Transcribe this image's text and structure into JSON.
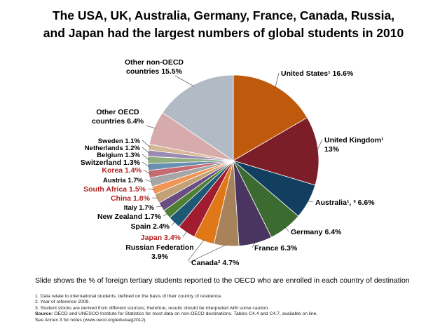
{
  "title_line1": "The USA, UK, Australia, Germany, France, Canada, Russia,",
  "title_line2": "and Japan had the largest numbers of global students in 2010",
  "caption": "Slide shows the % of foreign tertiary students reported to the OECD who are enrolled in each country of destination",
  "notes": {
    "n1": "1. Data relate to international students, defined on the basis of their country of residence.",
    "n2": "2. Year of reference 2009.",
    "n3": "3. Student stocks are derived from different sources; therefore, results should be interpreted with some caution.",
    "source_label": "Source:",
    "source_text": " OECD and UNESCO Institute for Statistics for most data on non-OECD destinations. Tables  C4.4 and C4.7, available on line.",
    "annex": "See Annex 3 for notes (www.oecd.org/edu/eag2012)."
  },
  "chart_data": {
    "type": "pie",
    "title": "The USA, UK, Australia, Germany, France, Canada, Russia, and Japan had the largest numbers of global students in 2010",
    "slices": [
      {
        "label": "United States¹  16.6%",
        "value": 16.6,
        "color": "#bf5a0c"
      },
      {
        "label": "United Kingdom¹ 13%",
        "value": 13.0,
        "color": "#7b1e28"
      },
      {
        "label": "Australia¹, ³  6.6%",
        "value": 6.6,
        "color": "#123f60"
      },
      {
        "label": "Germany  6.4%",
        "value": 6.4,
        "color": "#3b6b31"
      },
      {
        "label": "France  6.3%",
        "value": 6.3,
        "color": "#4a3560"
      },
      {
        "label": "Canada²  4.7%",
        "value": 4.7,
        "color": "#a8825a"
      },
      {
        "label": "Russian Federation 3.9%",
        "value": 3.9,
        "color": "#e07818"
      },
      {
        "label": "Japan  3.4%",
        "value": 3.4,
        "color": "#a01c2e"
      },
      {
        "label": "Spain  2.4%",
        "value": 2.4,
        "color": "#1d5875"
      },
      {
        "label": "New Zealand  1.7%",
        "value": 1.7,
        "color": "#4f7f35"
      },
      {
        "label": "Italy  1.7%",
        "value": 1.7,
        "color": "#6a4e83"
      },
      {
        "label": "China  1.8%",
        "value": 1.8,
        "color": "#c2a174"
      },
      {
        "label": "South Africa  1.5%",
        "value": 1.5,
        "color": "#f09555"
      },
      {
        "label": "Austria  1.7%",
        "value": 1.7,
        "color": "#a6a6a6"
      },
      {
        "label": "Korea  1.4%",
        "value": 1.4,
        "color": "#c66a72"
      },
      {
        "label": "Switzerland  1.3%",
        "value": 1.3,
        "color": "#6a8fb0"
      },
      {
        "label": "Belgium  1.3%",
        "value": 1.3,
        "color": "#8fae7e"
      },
      {
        "label": "Netherlands  1.2%",
        "value": 1.2,
        "color": "#9a8bb2"
      },
      {
        "label": "Sweden  1.1%",
        "value": 1.1,
        "color": "#d6b896"
      },
      {
        "label": "Other OECD countries  6.4%",
        "value": 6.4,
        "color": "#d7aaab"
      },
      {
        "label": "Other non-OECD countries  15.5%",
        "value": 15.5,
        "color": "#b2bac6"
      }
    ]
  }
}
